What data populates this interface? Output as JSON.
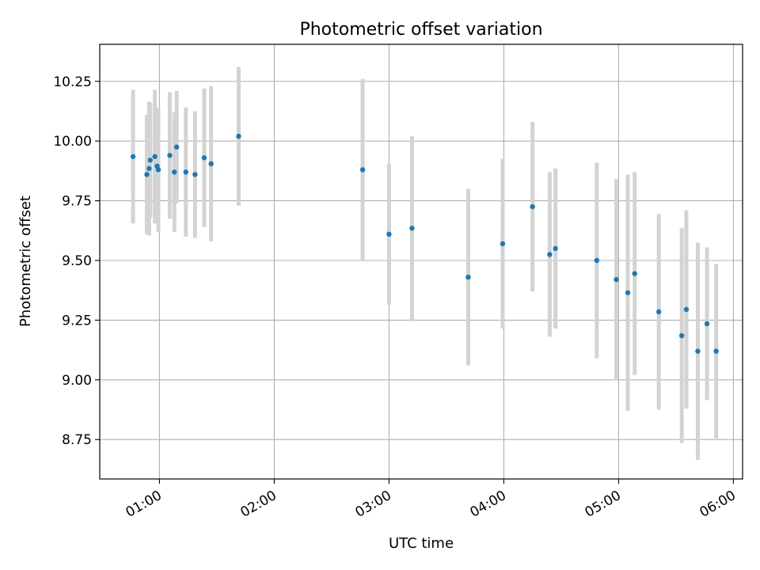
{
  "chart_data": {
    "type": "scatter",
    "title": "Photometric offset variation",
    "xlabel": "UTC time",
    "ylabel": "Photometric offset",
    "xlim": [
      0.48,
      6.08
    ],
    "ylim": [
      8.585,
      10.405
    ],
    "grid": true,
    "x_unit": "hours UTC",
    "x_ticks": [
      {
        "value": 1,
        "label": "01:00"
      },
      {
        "value": 2,
        "label": "02:00"
      },
      {
        "value": 3,
        "label": "03:00"
      },
      {
        "value": 4,
        "label": "04:00"
      },
      {
        "value": 5,
        "label": "05:00"
      },
      {
        "value": 6,
        "label": "06:00"
      }
    ],
    "y_ticks": [
      {
        "value": 8.75,
        "label": "8.75"
      },
      {
        "value": 9.0,
        "label": "9.00"
      },
      {
        "value": 9.25,
        "label": "9.25"
      },
      {
        "value": 9.5,
        "label": "9.50"
      },
      {
        "value": 9.75,
        "label": "9.75"
      },
      {
        "value": 10.0,
        "label": "10.00"
      },
      {
        "value": 10.25,
        "label": "10.25"
      }
    ],
    "point_color": "#1f77b4",
    "errorbar_color": "#d3d3d3",
    "points": [
      {
        "x": 0.77,
        "y": 9.935,
        "yerr": 0.28
      },
      {
        "x": 0.89,
        "y": 9.86,
        "yerr": 0.25
      },
      {
        "x": 0.91,
        "y": 9.885,
        "yerr": 0.28
      },
      {
        "x": 0.92,
        "y": 9.92,
        "yerr": 0.24
      },
      {
        "x": 0.96,
        "y": 9.935,
        "yerr": 0.28
      },
      {
        "x": 0.98,
        "y": 9.895,
        "yerr": 0.24
      },
      {
        "x": 0.99,
        "y": 9.88,
        "yerr": 0.26
      },
      {
        "x": 1.09,
        "y": 9.94,
        "yerr": 0.265
      },
      {
        "x": 1.13,
        "y": 9.87,
        "yerr": 0.25
      },
      {
        "x": 1.15,
        "y": 9.975,
        "yerr": 0.235
      },
      {
        "x": 1.23,
        "y": 9.87,
        "yerr": 0.27
      },
      {
        "x": 1.31,
        "y": 9.86,
        "yerr": 0.265
      },
      {
        "x": 1.39,
        "y": 9.93,
        "yerr": 0.29
      },
      {
        "x": 1.45,
        "y": 9.905,
        "yerr": 0.325
      },
      {
        "x": 1.69,
        "y": 10.02,
        "yerr": 0.29
      },
      {
        "x": 2.77,
        "y": 9.88,
        "yerr": 0.38
      },
      {
        "x": 3.0,
        "y": 9.61,
        "yerr": 0.295
      },
      {
        "x": 3.2,
        "y": 9.635,
        "yerr": 0.385
      },
      {
        "x": 3.69,
        "y": 9.43,
        "yerr": 0.37
      },
      {
        "x": 3.99,
        "y": 9.57,
        "yerr": 0.355
      },
      {
        "x": 4.25,
        "y": 9.725,
        "yerr": 0.355
      },
      {
        "x": 4.4,
        "y": 9.525,
        "yerr": 0.345
      },
      {
        "x": 4.45,
        "y": 9.55,
        "yerr": 0.335
      },
      {
        "x": 4.81,
        "y": 9.5,
        "yerr": 0.41
      },
      {
        "x": 4.98,
        "y": 9.42,
        "yerr": 0.42
      },
      {
        "x": 5.08,
        "y": 9.365,
        "yerr": 0.495
      },
      {
        "x": 5.14,
        "y": 9.445,
        "yerr": 0.425
      },
      {
        "x": 5.35,
        "y": 9.285,
        "yerr": 0.41
      },
      {
        "x": 5.55,
        "y": 9.185,
        "yerr": 0.45
      },
      {
        "x": 5.59,
        "y": 9.295,
        "yerr": 0.415
      },
      {
        "x": 5.69,
        "y": 9.12,
        "yerr": 0.455
      },
      {
        "x": 5.77,
        "y": 9.235,
        "yerr": 0.32
      },
      {
        "x": 5.85,
        "y": 9.12,
        "yerr": 0.365
      }
    ]
  }
}
